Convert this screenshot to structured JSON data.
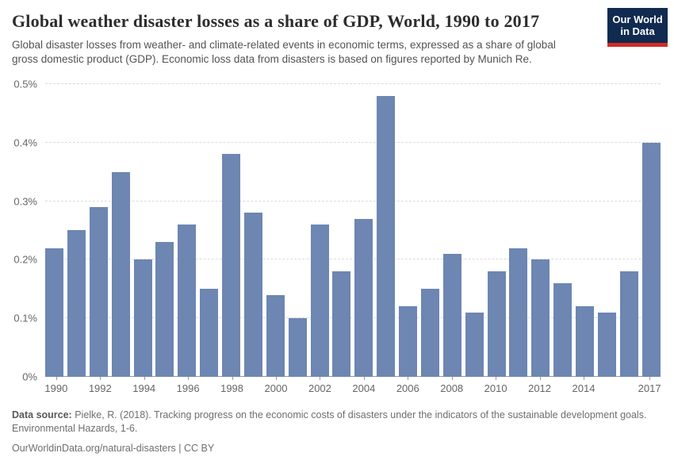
{
  "header": {
    "title": "Global weather disaster losses as a share of GDP, World, 1990 to 2017",
    "subtitle": "Global disaster losses from weather- and climate-related events in economic terms, expressed as a share of global gross domestic product (GDP). Economic loss data from disasters is based on figures reported by Munich Re.",
    "logo": {
      "line1": "Our World",
      "line2": "in Data",
      "bg_color": "#102a50",
      "accent_color": "#d12b26"
    }
  },
  "chart_data": {
    "type": "bar",
    "title": "Global weather disaster losses as a share of GDP, World, 1990 to 2017",
    "xlabel": "",
    "ylabel": "",
    "categories": [
      1990,
      1991,
      1992,
      1993,
      1994,
      1995,
      1996,
      1997,
      1998,
      1999,
      2000,
      2001,
      2002,
      2003,
      2004,
      2005,
      2006,
      2007,
      2008,
      2009,
      2010,
      2011,
      2012,
      2013,
      2014,
      2015,
      2016,
      2017
    ],
    "values": [
      0.22,
      0.25,
      0.29,
      0.35,
      0.2,
      0.23,
      0.26,
      0.15,
      0.38,
      0.28,
      0.14,
      0.1,
      0.26,
      0.18,
      0.27,
      0.48,
      0.12,
      0.15,
      0.21,
      0.11,
      0.18,
      0.22,
      0.2,
      0.16,
      0.12,
      0.11,
      0.18,
      0.4
    ],
    "unit": "%",
    "ylim": [
      0,
      0.5
    ],
    "yticks": [
      {
        "value": 0,
        "label": "0%"
      },
      {
        "value": 0.1,
        "label": "0.1%"
      },
      {
        "value": 0.2,
        "label": "0.2%"
      },
      {
        "value": 0.3,
        "label": "0.3%"
      },
      {
        "value": 0.4,
        "label": "0.4%"
      },
      {
        "value": 0.5,
        "label": "0.5%"
      }
    ],
    "xticks": [
      "1990",
      "1992",
      "1994",
      "1996",
      "1998",
      "2000",
      "2002",
      "2004",
      "2006",
      "2008",
      "2010",
      "2012",
      "2014",
      "2017"
    ],
    "bar_color": "#6d86b2",
    "grid": "horizontal-dashed",
    "legend": "none"
  },
  "footer": {
    "source_label": "Data source:",
    "source_text": " Pielke, R. (2018). Tracking progress on the economic costs of disasters under the indicators of the sustainable development goals. Environmental Hazards, 1-6.",
    "license_line": "OurWorldinData.org/natural-disasters | CC BY"
  }
}
